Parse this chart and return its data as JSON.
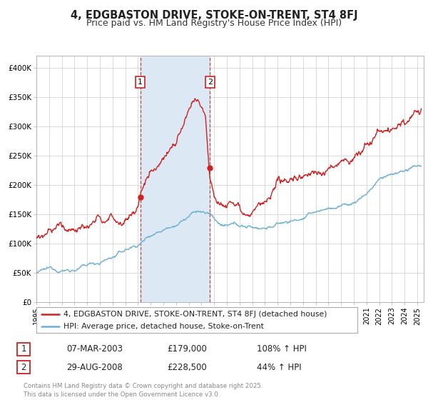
{
  "title": "4, EDGBASTON DRIVE, STOKE-ON-TRENT, ST4 8FJ",
  "subtitle": "Price paid vs. HM Land Registry's House Price Index (HPI)",
  "ylabel_ticks": [
    "£0",
    "£50K",
    "£100K",
    "£150K",
    "£200K",
    "£250K",
    "£300K",
    "£350K",
    "£400K"
  ],
  "ytick_values": [
    0,
    50000,
    100000,
    150000,
    200000,
    250000,
    300000,
    350000,
    400000
  ],
  "ylim": [
    0,
    420000
  ],
  "xlim_start": 1995.0,
  "xlim_end": 2025.5,
  "sale1_date": 2003.18,
  "sale1_price": 179000,
  "sale2_date": 2008.66,
  "sale2_price": 228500,
  "hpi_color": "#6baed6",
  "property_color": "#cc2222",
  "shade_color": "#dce9f5",
  "background_color": "#ffffff",
  "grid_color": "#cccccc",
  "legend_label_property": "4, EDGBASTON DRIVE, STOKE-ON-TRENT, ST4 8FJ (detached house)",
  "legend_label_hpi": "HPI: Average price, detached house, Stoke-on-Trent",
  "footer_text": "Contains HM Land Registry data © Crown copyright and database right 2025.\nThis data is licensed under the Open Government Licence v3.0.",
  "table_row1": [
    "1",
    "07-MAR-2003",
    "£179,000",
    "108% ↑ HPI"
  ],
  "table_row2": [
    "2",
    "29-AUG-2008",
    "£228,500",
    "44% ↑ HPI"
  ]
}
